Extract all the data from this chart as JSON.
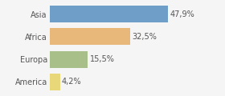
{
  "categories": [
    "Asia",
    "Africa",
    "Europa",
    "America"
  ],
  "values": [
    47.9,
    32.5,
    15.5,
    4.2
  ],
  "labels": [
    "47,9%",
    "32,5%",
    "15,5%",
    "4,2%"
  ],
  "bar_colors": [
    "#6f9ec9",
    "#e8b87a",
    "#a8bf8a",
    "#e8d87a"
  ],
  "background_color": "#f5f5f5",
  "xlim": [
    0,
    60
  ],
  "label_fontsize": 7,
  "tick_fontsize": 7,
  "bar_height": 0.75
}
